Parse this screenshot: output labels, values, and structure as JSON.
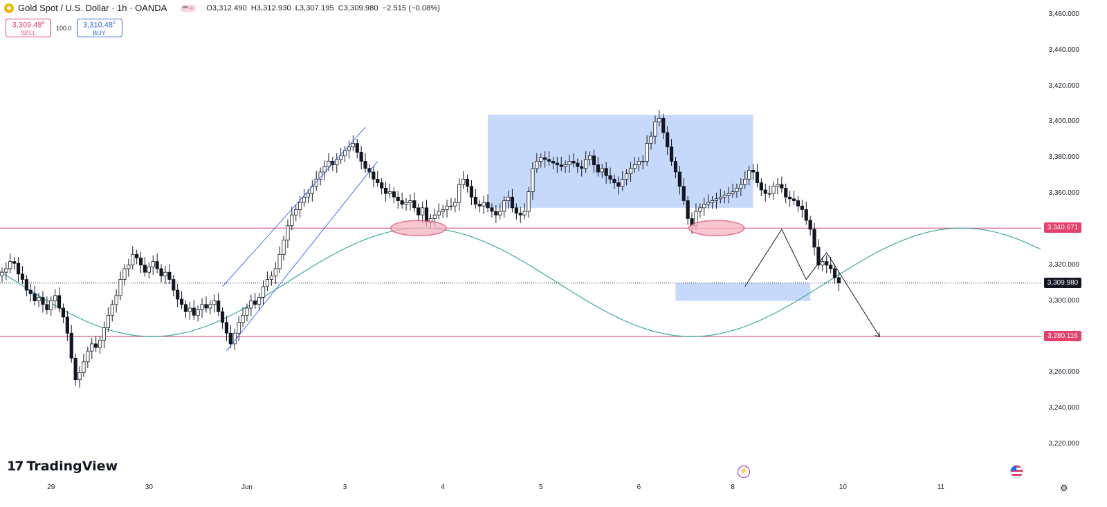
{
  "header": {
    "symbol": "Gold Spot / U.S. Dollar · 1h · OANDA",
    "open": "O3,312.490",
    "high": "H3,312.930",
    "low": "L3,307.195",
    "close": "C3,309.980",
    "change": "−2.515 (−0.08%)"
  },
  "trade": {
    "sell_price": "3,309.48",
    "sell_sup": "0",
    "sell_label": "SELL",
    "spread": "100.0",
    "buy_price": "3,310.48",
    "buy_sup": "0",
    "buy_label": "BUY"
  },
  "logo": {
    "text": "TradingView",
    "mark": "17"
  },
  "colors": {
    "candle": "#131722",
    "level_line": "#e3406b",
    "wave": "#26a69a",
    "zone_fill": "#b9cffa",
    "ellipse_fill": "#f5b5c0",
    "last_price_tag": "#131722"
  },
  "icons": [
    "gold-coin-icon",
    "indicator-toggle-icon",
    "lightning-icon",
    "us-flag-icon",
    "settings-gear-icon"
  ],
  "chart_data": {
    "type": "candlestick",
    "title": "",
    "xlabel": "",
    "ylabel": "",
    "ylim": [
      3210,
      3465
    ],
    "y_ticks": [
      "3,220.000",
      "3,240.000",
      "3,260.000",
      "3,280.000",
      "3,300.000",
      "3,320.000",
      "3,340.000",
      "3,360.000",
      "3,380.000",
      "3,400.000",
      "3,420.000",
      "3,440.000",
      "3,460.000"
    ],
    "y_tick_values": [
      3220,
      3240,
      3260,
      3280,
      3300,
      3320,
      3340,
      3360,
      3380,
      3400,
      3420,
      3440,
      3460
    ],
    "x_labels": [
      "29",
      "30",
      "Jun",
      "3",
      "4",
      "5",
      "6",
      "8",
      "10",
      "11"
    ],
    "x_label_bars": [
      12,
      36,
      60,
      84,
      108,
      132,
      156,
      179,
      206,
      230
    ],
    "bars_visible": 255,
    "price_levels": [
      {
        "label": "3,340.671",
        "value": 3340.671
      },
      {
        "label": "3,280.116",
        "value": 3280.116
      }
    ],
    "last_price": {
      "label": "3,309.980",
      "value": 3309.98
    },
    "close": [
      3316,
      3318,
      3322,
      3321,
      3315,
      3312,
      3306,
      3304,
      3300,
      3302,
      3298,
      3295,
      3300,
      3303,
      3296,
      3291,
      3282,
      3268,
      3256,
      3260,
      3266,
      3272,
      3276,
      3274,
      3278,
      3285,
      3292,
      3298,
      3303,
      3312,
      3318,
      3320,
      3326,
      3324,
      3320,
      3316,
      3319,
      3322,
      3318,
      3314,
      3316,
      3312,
      3306,
      3301,
      3298,
      3294,
      3296,
      3292,
      3295,
      3298,
      3296,
      3298,
      3300,
      3294,
      3288,
      3282,
      3276,
      3282,
      3288,
      3292,
      3296,
      3300,
      3298,
      3302,
      3308,
      3312,
      3314,
      3318,
      3326,
      3334,
      3342,
      3348,
      3351,
      3355,
      3358,
      3360,
      3364,
      3368,
      3372,
      3375,
      3378,
      3376,
      3379,
      3381,
      3384,
      3386,
      3388,
      3383,
      3378,
      3374,
      3372,
      3368,
      3366,
      3363,
      3360,
      3361,
      3358,
      3356,
      3354,
      3355,
      3356,
      3352,
      3348,
      3352,
      3344,
      3346,
      3348,
      3350,
      3351,
      3353,
      3353,
      3355,
      3365,
      3368,
      3364,
      3358,
      3354,
      3353,
      3355,
      3352,
      3350,
      3348,
      3350,
      3356,
      3358,
      3352,
      3349,
      3348,
      3350,
      3361,
      3374,
      3378,
      3380,
      3379,
      3378,
      3377,
      3376,
      3375,
      3376,
      3378,
      3377,
      3375,
      3374,
      3379,
      3381,
      3376,
      3372,
      3374,
      3370,
      3368,
      3366,
      3364,
      3368,
      3371,
      3374,
      3376,
      3378,
      3378,
      3388,
      3392,
      3400,
      3402,
      3394,
      3386,
      3378,
      3372,
      3364,
      3356,
      3346,
      3342,
      3350,
      3352,
      3354,
      3355,
      3356,
      3357,
      3358,
      3359,
      3360,
      3361,
      3363,
      3365,
      3368,
      3373,
      3372,
      3366,
      3362,
      3360,
      3360,
      3364,
      3365,
      3363,
      3358,
      3357,
      3356,
      3353,
      3351,
      3345,
      3340,
      3330,
      3320,
      3322,
      3320,
      3318,
      3313,
      3310
    ]
  }
}
